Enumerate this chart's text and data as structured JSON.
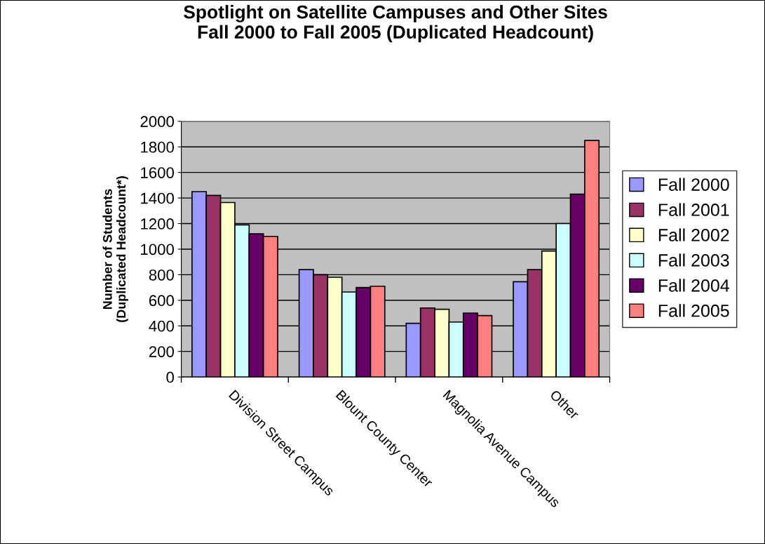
{
  "chart_data": {
    "type": "bar",
    "title": "Spotlight on Satellite Campuses and Other Sites\nFall 2000 to Fall 2005 (Duplicated Headcount)",
    "ylabel": "Number of Students\n(Duplicated Headcount*)",
    "categories": [
      "Division Street Campus",
      "Blount County Center",
      "Magnolia Avenue Campus",
      "Other"
    ],
    "series": [
      {
        "name": "Fall 2000",
        "color": "#9999ff",
        "values": [
          1450,
          840,
          420,
          745
        ]
      },
      {
        "name": "Fall 2001",
        "color": "#993366",
        "values": [
          1420,
          800,
          540,
          840
        ]
      },
      {
        "name": "Fall 2002",
        "color": "#ffffcc",
        "values": [
          1365,
          780,
          530,
          985
        ]
      },
      {
        "name": "Fall 2003",
        "color": "#ccffff",
        "values": [
          1190,
          665,
          430,
          1200
        ]
      },
      {
        "name": "Fall 2004",
        "color": "#660066",
        "values": [
          1120,
          700,
          500,
          1430
        ]
      },
      {
        "name": "Fall 2005",
        "color": "#ff8080",
        "values": [
          1100,
          710,
          480,
          1850
        ]
      }
    ],
    "ylim": [
      0,
      2000
    ],
    "yticks": [
      0,
      200,
      400,
      600,
      800,
      1000,
      1200,
      1400,
      1600,
      1800,
      2000
    ],
    "grid": "y",
    "legend": "right"
  }
}
